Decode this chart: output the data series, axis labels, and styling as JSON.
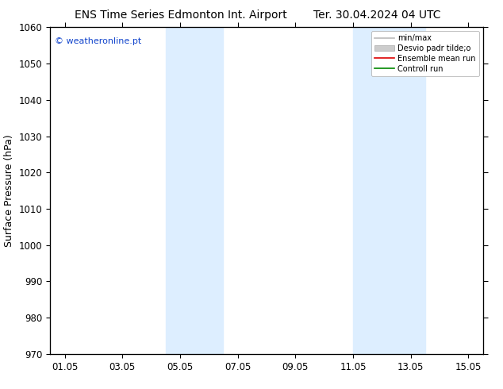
{
  "title_left": "ENS Time Series Edmonton Int. Airport",
  "title_right": "Ter. 30.04.2024 04 UTC",
  "ylabel": "Surface Pressure (hPa)",
  "ylim": [
    970,
    1060
  ],
  "yticks": [
    970,
    980,
    990,
    1000,
    1010,
    1020,
    1030,
    1040,
    1050,
    1060
  ],
  "xtick_labels": [
    "01.05",
    "03.05",
    "05.05",
    "07.05",
    "09.05",
    "11.05",
    "13.05",
    "15.05"
  ],
  "xtick_positions": [
    0,
    2,
    4,
    6,
    8,
    10,
    12,
    14
  ],
  "xlim": [
    -0.5,
    14.5
  ],
  "shade_bands": [
    {
      "xmin": 3.5,
      "xmax": 5.5
    },
    {
      "xmin": 10.0,
      "xmax": 12.5
    }
  ],
  "shade_color": "#ddeeff",
  "watermark": "© weatheronline.pt",
  "watermark_color": "#1144cc",
  "legend_items": [
    {
      "label": "min/max",
      "color": "#bbbbbb",
      "type": "line"
    },
    {
      "label": "Desvio padr tilde;o",
      "color": "#cccccc",
      "type": "box"
    },
    {
      "label": "Ensemble mean run",
      "color": "#dd0000",
      "type": "line"
    },
    {
      "label": "Controll run",
      "color": "#008800",
      "type": "line"
    }
  ],
  "bg_color": "#ffffff",
  "title_fontsize": 10,
  "ylabel_fontsize": 9,
  "tick_fontsize": 8.5,
  "legend_fontsize": 7,
  "watermark_fontsize": 8
}
